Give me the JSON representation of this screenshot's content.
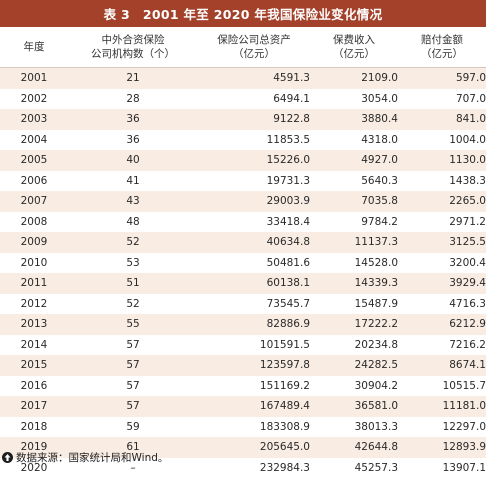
{
  "title": "表 3　2001 年至 2020 年我国保险业变化情况",
  "table": {
    "headers": [
      {
        "line1": "年度",
        "line2": ""
      },
      {
        "line1": "中外合资保险",
        "line2": "公司机构数（个）"
      },
      {
        "line1": "保险公司总资产",
        "line2": "（亿元）"
      },
      {
        "line1": "保费收入",
        "line2": "（亿元）"
      },
      {
        "line1": "赔付金额",
        "line2": "（亿元）"
      }
    ],
    "rows": [
      [
        "2001",
        "21",
        "4591.3",
        "2109.0",
        "597.0"
      ],
      [
        "2002",
        "28",
        "6494.1",
        "3054.0",
        "707.0"
      ],
      [
        "2003",
        "36",
        "9122.8",
        "3880.4",
        "841.0"
      ],
      [
        "2004",
        "36",
        "11853.5",
        "4318.0",
        "1004.0"
      ],
      [
        "2005",
        "40",
        "15226.0",
        "4927.0",
        "1130.0"
      ],
      [
        "2006",
        "41",
        "19731.3",
        "5640.3",
        "1438.3"
      ],
      [
        "2007",
        "43",
        "29003.9",
        "7035.8",
        "2265.0"
      ],
      [
        "2008",
        "48",
        "33418.4",
        "9784.2",
        "2971.2"
      ],
      [
        "2009",
        "52",
        "40634.8",
        "11137.3",
        "3125.5"
      ],
      [
        "2010",
        "53",
        "50481.6",
        "14528.0",
        "3200.4"
      ],
      [
        "2011",
        "51",
        "60138.1",
        "14339.3",
        "3929.4"
      ],
      [
        "2012",
        "52",
        "73545.7",
        "15487.9",
        "4716.3"
      ],
      [
        "2013",
        "55",
        "82886.9",
        "17222.2",
        "6212.9"
      ],
      [
        "2014",
        "57",
        "101591.5",
        "20234.8",
        "7216.2"
      ],
      [
        "2015",
        "57",
        "123597.8",
        "24282.5",
        "8674.1"
      ],
      [
        "2016",
        "57",
        "151169.2",
        "30904.2",
        "10515.7"
      ],
      [
        "2017",
        "57",
        "167489.4",
        "36581.0",
        "11181.0"
      ],
      [
        "2018",
        "59",
        "183308.9",
        "38013.3",
        "12297.0"
      ],
      [
        "2019",
        "61",
        "205645.0",
        "42644.8",
        "12893.9"
      ],
      [
        "2020",
        "–",
        "232984.3",
        "45257.3",
        "13907.1"
      ]
    ]
  },
  "source": {
    "icon": "up-arrow-circle-icon",
    "text": "数据来源：国家统计局和Wind。"
  },
  "colors": {
    "title_bg": "#a4412b",
    "row_alt": "#f9ece3",
    "text": "#2a2a2a"
  }
}
